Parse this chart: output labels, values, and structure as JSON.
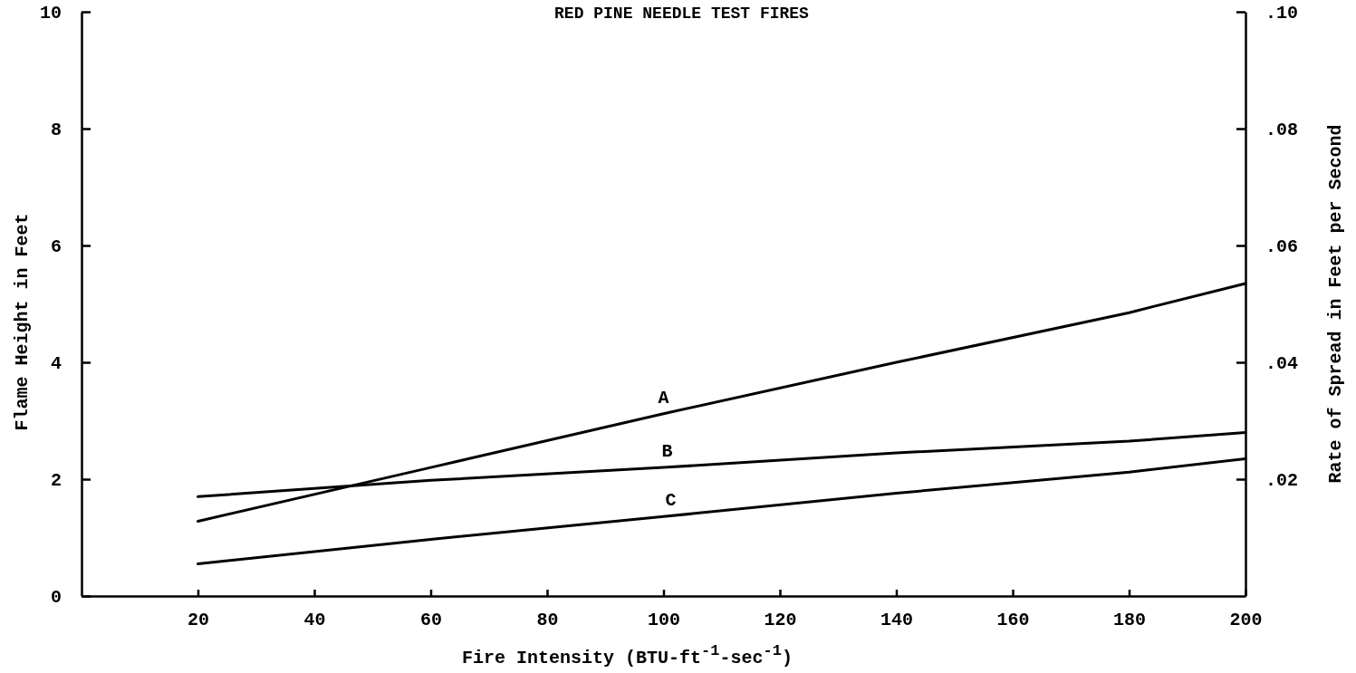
{
  "chart_data": {
    "type": "line",
    "title": "RED PINE NEEDLE TEST FIRES",
    "xlabel": "Fire Intensity (BTU-ft$^{-1}$-sec$^{-1}$)",
    "ylabel": "Flame Height in Feet",
    "y2label": "Rate of Spread in Feet per Second",
    "x": [
      20,
      60,
      100,
      140,
      180,
      200
    ],
    "series": [
      {
        "name": "A",
        "color": "#000000",
        "values": [
          1.28,
          2.2,
          3.12,
          4.0,
          4.85,
          5.35
        ]
      },
      {
        "name": "B",
        "color": "#000000",
        "values": [
          1.7,
          1.98,
          2.2,
          2.45,
          2.65,
          2.8
        ]
      },
      {
        "name": "C",
        "color": "#000000",
        "values": [
          0.55,
          0.97,
          1.36,
          1.76,
          2.12,
          2.35
        ]
      }
    ],
    "xlim": [
      0,
      200
    ],
    "xticks": [
      20,
      40,
      60,
      80,
      100,
      120,
      140,
      160,
      180,
      200
    ],
    "ylim": [
      0,
      10
    ],
    "yticks": [
      0,
      2,
      4,
      6,
      8,
      10
    ],
    "y2lim": [
      0,
      0.1
    ],
    "y2ticks": [
      {
        "value": 0.02,
        "label": ".02"
      },
      {
        "value": 0.04,
        "label": ".04"
      },
      {
        "value": 0.06,
        "label": ".06"
      },
      {
        "value": 0.08,
        "label": ".08"
      },
      {
        "value": 0.1,
        "label": ".10"
      }
    ],
    "grid": false,
    "marker": "none",
    "line_style": "solid"
  }
}
